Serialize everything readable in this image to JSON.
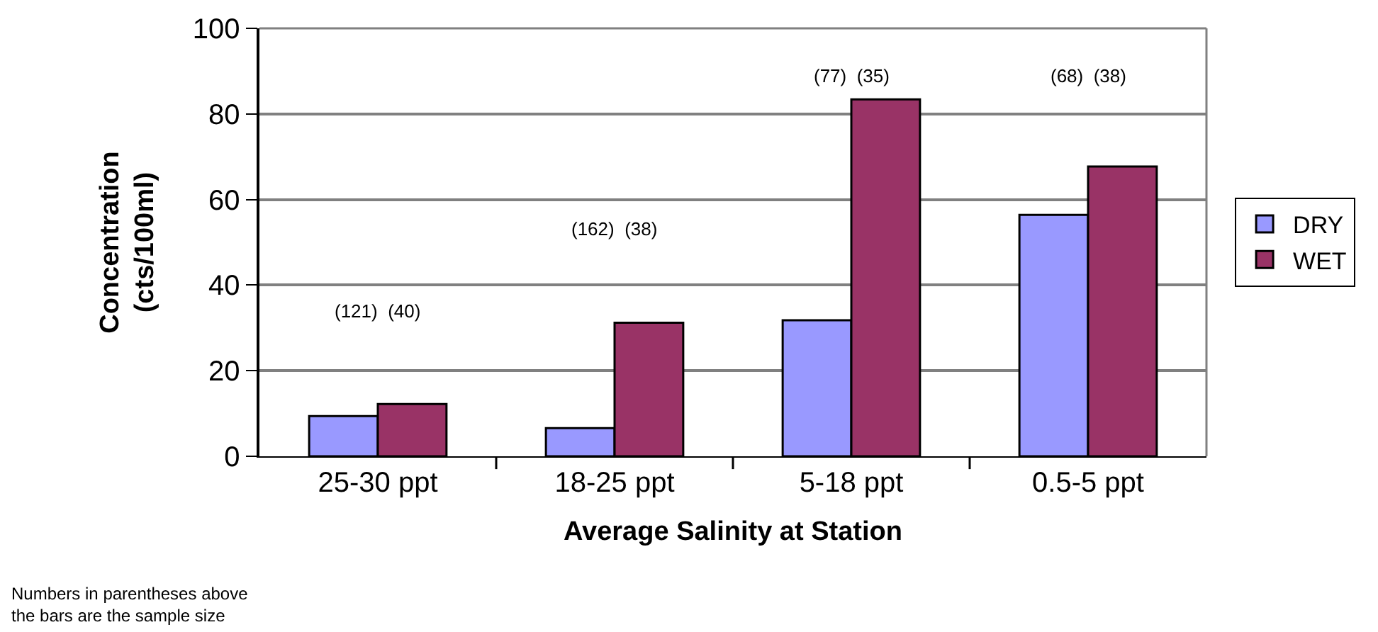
{
  "chart_data": {
    "type": "bar",
    "xlabel": "Average Salinity at Station",
    "ylabel": "Concentration\n(cts/100ml)",
    "categories": [
      "25-30 ppt",
      "18-25 ppt",
      "5-18 ppt",
      "0.5-5 ppt"
    ],
    "series": [
      {
        "name": "DRY",
        "color": "#9999ff",
        "values": [
          9.4,
          6.6,
          31.8,
          56.4
        ]
      },
      {
        "name": "WET",
        "color": "#993366",
        "values": [
          12.2,
          31.2,
          83.4,
          67.7
        ]
      }
    ],
    "ylim": [
      0,
      100
    ],
    "yticks": [
      0,
      20,
      40,
      60,
      80,
      100
    ],
    "grid": "y",
    "legend": "right",
    "annotations": [
      "(121)  (40)",
      "(162)  (38)",
      "(77)  (35)",
      "(68)  (38)",
      "Numbers in parentheses above\nthe bars are the sample size"
    ]
  }
}
